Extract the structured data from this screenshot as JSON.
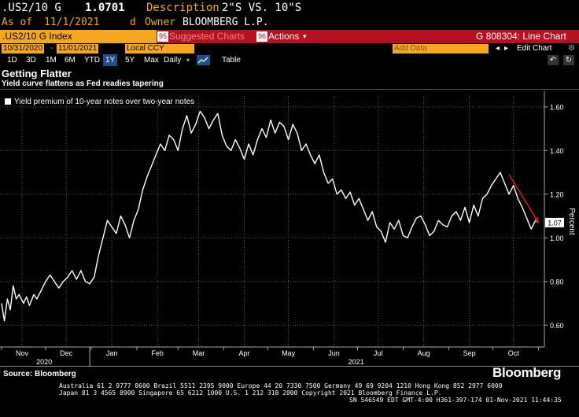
{
  "header": {
    "ticker": ".US2/10 G",
    "last": "1.0701",
    "desc_label": "Description",
    "desc_value": "2\"S VS. 10\"S",
    "asof_label": "As of",
    "asof_value": "11/1/2021",
    "d_label": "d",
    "owner_label": "Owner",
    "owner_value": "BLOOMBERG L.P."
  },
  "toolbar": {
    "index_label": ".US2/10 G Index",
    "suggested_num": "95",
    "suggested_label": "Suggested Charts",
    "actions_num": "96",
    "actions_label": "Actions",
    "actions_arrow": "▾",
    "chart_id": "G 808304: Line Chart"
  },
  "range": {
    "start": "10/31/2020",
    "end": "11/01/2021",
    "currency": "Local CCY",
    "add_data_placeholder": "Add Data",
    "edit_chart": "Edit Chart",
    "undo": "↶",
    "refresh": "↻",
    "nav_left": "◂",
    "nav_right": "▸",
    "gear": "⚙"
  },
  "periods": [
    "1D",
    "3D",
    "1M",
    "6M",
    "YTD",
    "1Y",
    "5Y",
    "Max"
  ],
  "active_period": "1Y",
  "frequency": "Daily",
  "table_label": "Table",
  "title": "Getting Flatter",
  "subtitle": "Yield curve flattens as Fed readies tapering",
  "legend_label": "Yield premium of 10-year notes over two-year notes",
  "last_value_label": "1.07",
  "source": "Source: Bloomberg",
  "brand": "Bloomberg",
  "footer_lines": [
    "Australia 61 2 9777 8600 Brazil 5511 2395 9000 Europe 44 20 7330 7500 Germany 49 69 9204 1210 Hong Kong 852 2977 6000",
    "Japan 81 3 4565 8900      Singapore 65 6212 1000      U.S. 1 212 318 2000      Copyright 2021 Bloomberg Finance L.P.",
    "SN 546549 EDT  GMT-4:00 H361-397-174 01-Nov-2021 11:44:35"
  ],
  "colors": {
    "amber": "#f5a623",
    "red_bar": "#b5111e",
    "line": "#ffffff",
    "annotation": "#e8101e",
    "grid": "#5a5a5a"
  },
  "chart_data": {
    "type": "line",
    "title": "Getting Flatter",
    "subtitle": "Yield curve flattens as Fed readies tapering",
    "ylabel": "Percent",
    "ylim": [
      0.5,
      1.65
    ],
    "yticks": [
      0.6,
      0.8,
      1.0,
      1.2,
      1.4,
      1.6
    ],
    "ytick_labels": [
      "0.60",
      "0.80",
      "1.00",
      "1.20",
      "1.40",
      "1.60"
    ],
    "xlim": [
      "2020-10-31",
      "2021-11-05"
    ],
    "xticks": [
      {
        "date": "2020-11-15",
        "label": "Nov"
      },
      {
        "date": "2020-12-15",
        "label": "Dec"
      },
      {
        "date": "2021-01-15",
        "label": "Jan"
      },
      {
        "date": "2021-02-15",
        "label": "Feb"
      },
      {
        "date": "2021-03-15",
        "label": "Mar"
      },
      {
        "date": "2021-04-15",
        "label": "Apr"
      },
      {
        "date": "2021-05-15",
        "label": "May"
      },
      {
        "date": "2021-06-15",
        "label": "Jun"
      },
      {
        "date": "2021-07-15",
        "label": "Jul"
      },
      {
        "date": "2021-08-15",
        "label": "Aug"
      },
      {
        "date": "2021-09-15",
        "label": "Sep"
      },
      {
        "date": "2021-10-15",
        "label": "Oct"
      }
    ],
    "year_labels": [
      {
        "date": "2020-11-30",
        "label": "2020"
      },
      {
        "date": "2021-06-30",
        "label": "2021"
      }
    ],
    "year_dividers": [
      "2020-12-31"
    ],
    "series": [
      {
        "name": "Yield premium of 10-year notes over two-year notes",
        "x": [
          "2020-11-01",
          "2020-11-03",
          "2020-11-05",
          "2020-11-07",
          "2020-11-09",
          "2020-11-11",
          "2020-11-13",
          "2020-11-16",
          "2020-11-18",
          "2020-11-20",
          "2020-11-23",
          "2020-11-25",
          "2020-11-28",
          "2020-12-01",
          "2020-12-04",
          "2020-12-07",
          "2020-12-10",
          "2020-12-13",
          "2020-12-16",
          "2020-12-19",
          "2020-12-22",
          "2020-12-25",
          "2020-12-28",
          "2020-12-31",
          "2021-01-03",
          "2021-01-06",
          "2021-01-09",
          "2021-01-12",
          "2021-01-15",
          "2021-01-18",
          "2021-01-21",
          "2021-01-24",
          "2021-01-27",
          "2021-01-30",
          "2021-02-02",
          "2021-02-05",
          "2021-02-08",
          "2021-02-11",
          "2021-02-14",
          "2021-02-17",
          "2021-02-20",
          "2021-02-23",
          "2021-02-26",
          "2021-03-01",
          "2021-03-04",
          "2021-03-07",
          "2021-03-10",
          "2021-03-13",
          "2021-03-16",
          "2021-03-19",
          "2021-03-22",
          "2021-03-25",
          "2021-03-28",
          "2021-03-31",
          "2021-04-03",
          "2021-04-06",
          "2021-04-09",
          "2021-04-12",
          "2021-04-15",
          "2021-04-18",
          "2021-04-21",
          "2021-04-24",
          "2021-04-27",
          "2021-04-30",
          "2021-05-03",
          "2021-05-06",
          "2021-05-09",
          "2021-05-12",
          "2021-05-15",
          "2021-05-18",
          "2021-05-21",
          "2021-05-24",
          "2021-05-27",
          "2021-05-30",
          "2021-06-02",
          "2021-06-05",
          "2021-06-08",
          "2021-06-11",
          "2021-06-14",
          "2021-06-17",
          "2021-06-20",
          "2021-06-23",
          "2021-06-26",
          "2021-06-29",
          "2021-07-02",
          "2021-07-05",
          "2021-07-08",
          "2021-07-11",
          "2021-07-14",
          "2021-07-17",
          "2021-07-20",
          "2021-07-23",
          "2021-07-26",
          "2021-07-29",
          "2021-08-01",
          "2021-08-04",
          "2021-08-07",
          "2021-08-10",
          "2021-08-13",
          "2021-08-16",
          "2021-08-19",
          "2021-08-22",
          "2021-08-25",
          "2021-08-28",
          "2021-08-31",
          "2021-09-03",
          "2021-09-06",
          "2021-09-09",
          "2021-09-12",
          "2021-09-15",
          "2021-09-18",
          "2021-09-21",
          "2021-09-24",
          "2021-09-27",
          "2021-09-30",
          "2021-10-03",
          "2021-10-06",
          "2021-10-09",
          "2021-10-12",
          "2021-10-15",
          "2021-10-18",
          "2021-10-21",
          "2021-10-24",
          "2021-10-27",
          "2021-10-30",
          "2021-11-01"
        ],
        "y": [
          0.7,
          0.62,
          0.72,
          0.67,
          0.78,
          0.72,
          0.74,
          0.7,
          0.73,
          0.69,
          0.74,
          0.72,
          0.76,
          0.8,
          0.83,
          0.8,
          0.77,
          0.8,
          0.82,
          0.85,
          0.81,
          0.85,
          0.8,
          0.79,
          0.82,
          0.92,
          1.0,
          1.08,
          1.05,
          1.02,
          1.1,
          1.06,
          1.0,
          1.08,
          1.13,
          1.22,
          1.28,
          1.33,
          1.38,
          1.43,
          1.4,
          1.47,
          1.45,
          1.4,
          1.5,
          1.56,
          1.48,
          1.52,
          1.58,
          1.55,
          1.5,
          1.54,
          1.57,
          1.47,
          1.42,
          1.4,
          1.45,
          1.41,
          1.36,
          1.43,
          1.38,
          1.45,
          1.5,
          1.46,
          1.54,
          1.48,
          1.53,
          1.51,
          1.45,
          1.52,
          1.48,
          1.4,
          1.43,
          1.38,
          1.34,
          1.38,
          1.3,
          1.25,
          1.27,
          1.2,
          1.22,
          1.18,
          1.21,
          1.15,
          1.18,
          1.13,
          1.08,
          1.12,
          1.05,
          1.03,
          0.98,
          1.07,
          1.04,
          1.08,
          1.01,
          1.0,
          1.05,
          1.09,
          1.1,
          1.06,
          1.01,
          1.03,
          1.08,
          1.06,
          1.05,
          1.1,
          1.12,
          1.08,
          1.14,
          1.07,
          1.15,
          1.1,
          1.18,
          1.2,
          1.24,
          1.27,
          1.3,
          1.25,
          1.2,
          1.24,
          1.18,
          1.14,
          1.09,
          1.04,
          1.08,
          1.07
        ]
      }
    ],
    "annotations": [
      {
        "type": "arrow",
        "from": [
          "2021-10-12",
          1.29
        ],
        "to": [
          "2021-11-01",
          1.07
        ]
      }
    ]
  }
}
